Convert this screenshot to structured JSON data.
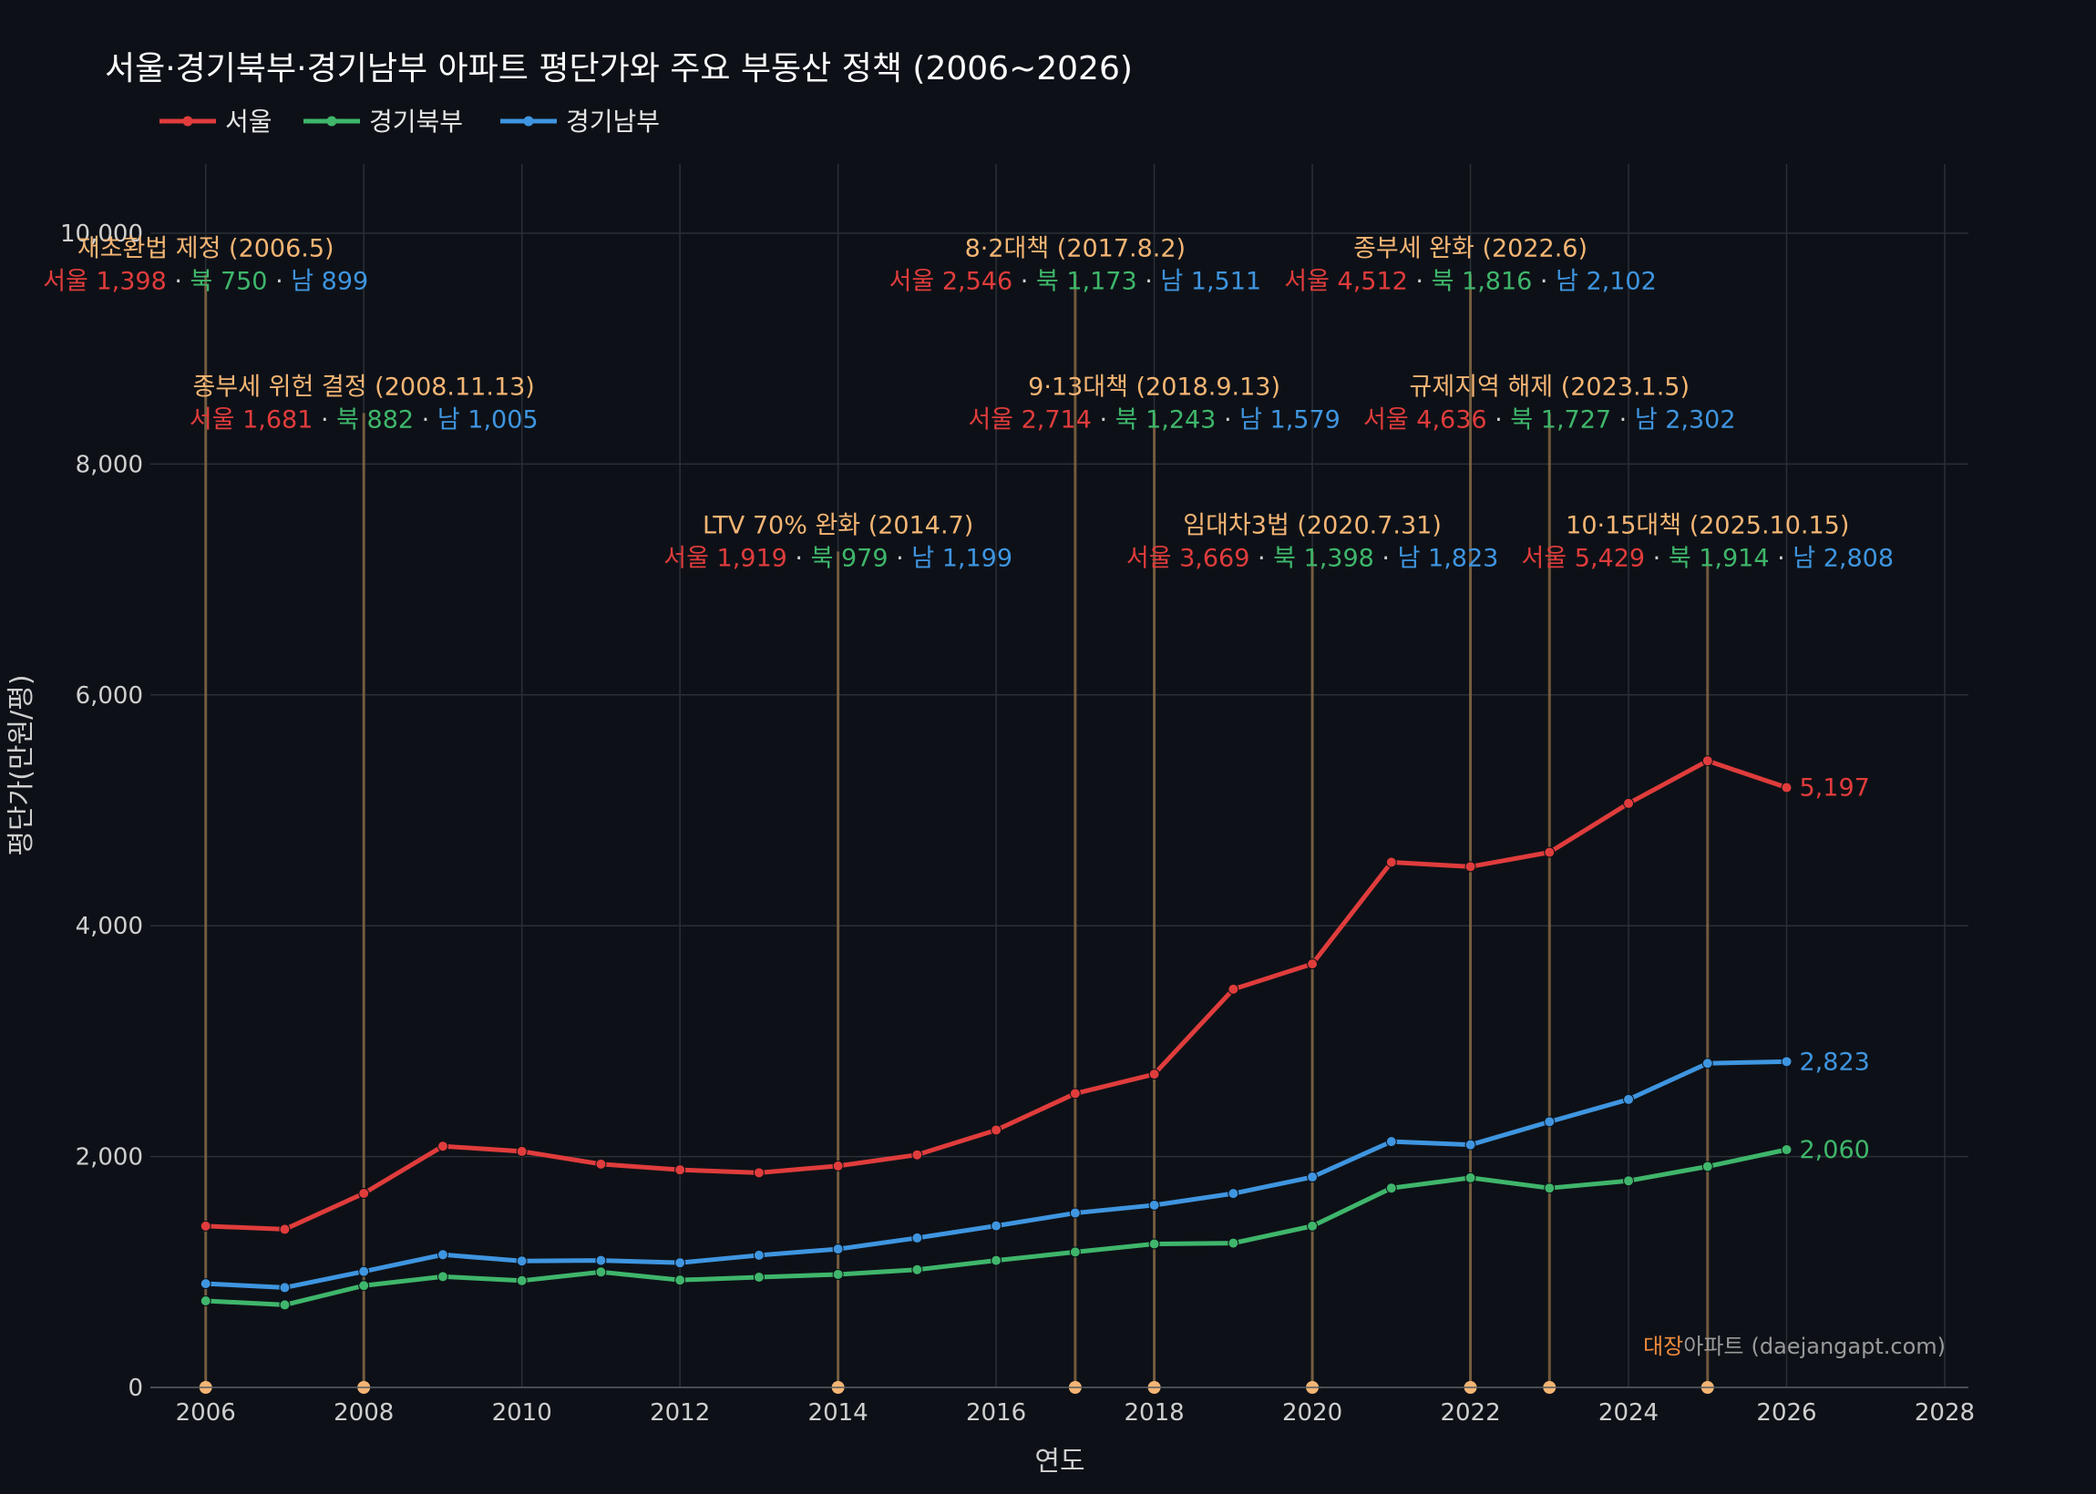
{
  "colors": {
    "background": "#0d1117",
    "grid": "#2a2f36",
    "seoul": "#e03c3c",
    "north": "#3fb66b",
    "south": "#3f95e0",
    "policy": "#f5b574",
    "policy_line": "#8a6a45"
  },
  "chart_data": {
    "type": "line",
    "title": "서울·경기북부·경기남부 아파트 평단가와 주요 부동산 정책 (2006~2026)",
    "xlabel": "연도",
    "ylabel": "평단가(만원/평)",
    "xlim": [
      2005.3,
      2028.3
    ],
    "ylim": [
      0,
      10600
    ],
    "grid": true,
    "legend_position": "top-left",
    "x_ticks": [
      2006,
      2008,
      2010,
      2012,
      2014,
      2016,
      2018,
      2020,
      2022,
      2024,
      2026,
      2028
    ],
    "y_ticks": [
      0,
      2000,
      4000,
      6000,
      8000,
      10000
    ],
    "y_tick_labels": [
      "0",
      "2,000",
      "4,000",
      "6,000",
      "8,000",
      "10,000"
    ],
    "x": [
      2006,
      2007,
      2008,
      2009,
      2010,
      2011,
      2012,
      2013,
      2014,
      2015,
      2016,
      2017,
      2018,
      2019,
      2020,
      2021,
      2022,
      2023,
      2024,
      2025,
      2026
    ],
    "series": [
      {
        "name": "서울",
        "key": "seoul",
        "values": [
          1398,
          1370,
          1681,
          2090,
          2045,
          1935,
          1885,
          1860,
          1919,
          2015,
          2230,
          2546,
          2714,
          3450,
          3669,
          4550,
          4512,
          4636,
          5060,
          5429,
          5197
        ],
        "end_label": "5,197"
      },
      {
        "name": "경기북부",
        "key": "north",
        "values": [
          750,
          715,
          882,
          960,
          925,
          1000,
          930,
          955,
          979,
          1020,
          1100,
          1173,
          1243,
          1250,
          1398,
          1727,
          1816,
          1727,
          1790,
          1914,
          2060
        ],
        "end_label": "2,060"
      },
      {
        "name": "경기남부",
        "key": "south",
        "values": [
          899,
          865,
          1005,
          1150,
          1095,
          1100,
          1080,
          1145,
          1199,
          1295,
          1400,
          1511,
          1579,
          1680,
          1823,
          2130,
          2102,
          2302,
          2495,
          2808,
          2823
        ],
        "end_label": "2,823"
      }
    ],
    "annotations": [
      {
        "x": 2006,
        "label_y": 9800,
        "title": "재초환법 제정 (2006.5)",
        "seoul": "서울 1,398",
        "north": "북 750",
        "south": "남 899"
      },
      {
        "x": 2008,
        "label_y": 8600,
        "title": "종부세 위헌 결정 (2008.11.13)",
        "seoul": "서울 1,681",
        "north": "북 882",
        "south": "남 1,005"
      },
      {
        "x": 2014,
        "label_y": 7400,
        "title": "LTV 70% 완화 (2014.7)",
        "seoul": "서울 1,919",
        "north": "북 979",
        "south": "남 1,199"
      },
      {
        "x": 2017,
        "label_y": 9800,
        "title": "8·2대책 (2017.8.2)",
        "seoul": "서울 2,546",
        "north": "북 1,173",
        "south": "남 1,511"
      },
      {
        "x": 2018,
        "label_y": 8600,
        "title": "9·13대책 (2018.9.13)",
        "seoul": "서울 2,714",
        "north": "북 1,243",
        "south": "남 1,579"
      },
      {
        "x": 2020,
        "label_y": 7400,
        "title": "임대차3법 (2020.7.31)",
        "seoul": "서울 3,669",
        "north": "북 1,398",
        "south": "남 1,823"
      },
      {
        "x": 2022,
        "label_y": 9800,
        "title": "종부세 완화 (2022.6)",
        "seoul": "서울 4,512",
        "north": "북 1,816",
        "south": "남 2,102"
      },
      {
        "x": 2023,
        "label_y": 8600,
        "title": "규제지역 해제 (2023.1.5)",
        "seoul": "서울 4,636",
        "north": "북 1,727",
        "south": "남 2,302"
      },
      {
        "x": 2025,
        "label_y": 7400,
        "title": "10·15대책 (2025.10.15)",
        "seoul": "서울 5,429",
        "north": "북 1,914",
        "south": "남 2,808"
      }
    ],
    "separator": " · "
  },
  "watermark": {
    "brand": "대장",
    "rest": "아파트",
    "url": "(daejangapt.com)"
  }
}
